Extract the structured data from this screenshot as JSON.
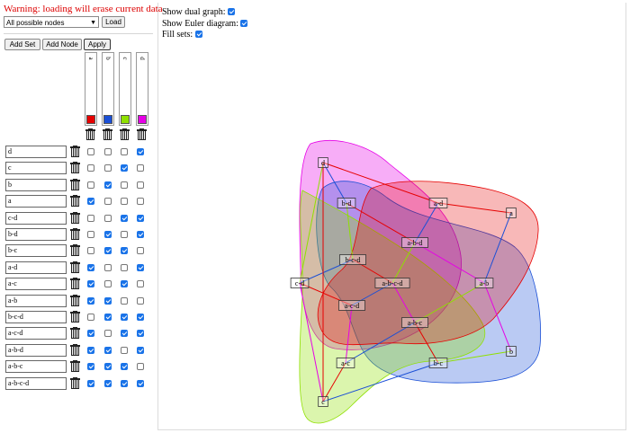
{
  "header": {
    "warning": "Warning: loading will erase current data",
    "select_value": "All possible nodes",
    "load_label": "Load"
  },
  "toolbar": {
    "add_set_label": "Add Set",
    "add_node_label": "Add Node",
    "apply_label": "Apply"
  },
  "sets": [
    {
      "name": "a",
      "color": "#e60000"
    },
    {
      "name": "b",
      "color": "#1a4fd6"
    },
    {
      "name": "c",
      "color": "#8fe000"
    },
    {
      "name": "d",
      "color": "#e600e6"
    }
  ],
  "nodes": [
    {
      "label": "d",
      "membership": [
        false,
        false,
        false,
        true
      ]
    },
    {
      "label": "c",
      "membership": [
        false,
        false,
        true,
        false
      ]
    },
    {
      "label": "b",
      "membership": [
        false,
        true,
        false,
        false
      ]
    },
    {
      "label": "a",
      "membership": [
        true,
        false,
        false,
        false
      ]
    },
    {
      "label": "c-d",
      "membership": [
        false,
        false,
        true,
        true
      ]
    },
    {
      "label": "b-d",
      "membership": [
        false,
        true,
        false,
        true
      ]
    },
    {
      "label": "b-c",
      "membership": [
        false,
        true,
        true,
        false
      ]
    },
    {
      "label": "a-d",
      "membership": [
        true,
        false,
        false,
        true
      ]
    },
    {
      "label": "a-c",
      "membership": [
        true,
        false,
        true,
        false
      ]
    },
    {
      "label": "a-b",
      "membership": [
        true,
        true,
        false,
        false
      ]
    },
    {
      "label": "b-c-d",
      "membership": [
        false,
        true,
        true,
        true
      ]
    },
    {
      "label": "a-c-d",
      "membership": [
        true,
        false,
        true,
        true
      ]
    },
    {
      "label": "a-b-d",
      "membership": [
        true,
        true,
        false,
        true
      ]
    },
    {
      "label": "a-b-c",
      "membership": [
        true,
        true,
        true,
        false
      ]
    },
    {
      "label": "a-b-c-d",
      "membership": [
        true,
        true,
        true,
        true
      ]
    }
  ],
  "options": {
    "dual_graph_label": "Show dual graph:",
    "dual_graph_checked": true,
    "euler_label": "Show Euler diagram:",
    "euler_checked": true,
    "fill_label": "Fill sets:",
    "fill_checked": true
  },
  "graph_nodes": [
    {
      "label": "d"
    },
    {
      "label": "b-d"
    },
    {
      "label": "a-d"
    },
    {
      "label": "a"
    },
    {
      "label": "a-b-d"
    },
    {
      "label": "b-c-d"
    },
    {
      "label": "c-d"
    },
    {
      "label": "a-b-c-d"
    },
    {
      "label": "a-b"
    },
    {
      "label": "a-c-d"
    },
    {
      "label": "a-b-c"
    },
    {
      "label": "b"
    },
    {
      "label": "a-c"
    },
    {
      "label": "b-c"
    },
    {
      "label": "c"
    }
  ]
}
